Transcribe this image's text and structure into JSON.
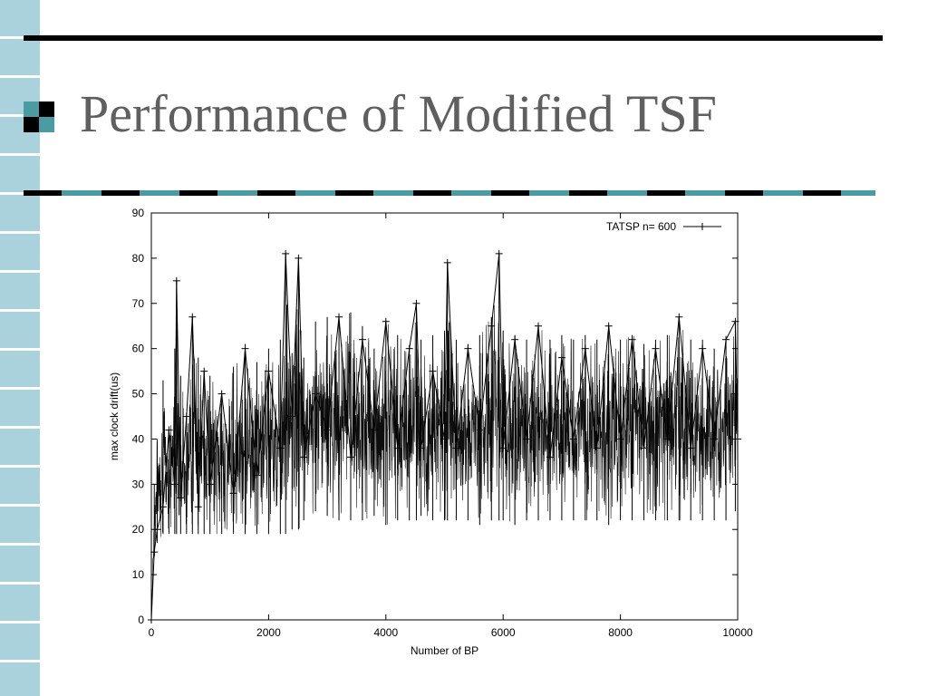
{
  "slide": {
    "title": "Performance of Modified TSF",
    "colors": {
      "accent": "#4b9ba3",
      "strip": "#a9d2dc",
      "title": "#5f5f5f"
    }
  },
  "chart_data": {
    "type": "line",
    "title": "",
    "xlabel": "Number of BP",
    "ylabel": "max clock drift(us)",
    "xlim": [
      0,
      10000
    ],
    "ylim": [
      0,
      90
    ],
    "xticks": [
      0,
      2000,
      4000,
      6000,
      8000,
      10000
    ],
    "yticks": [
      0,
      10,
      20,
      30,
      40,
      50,
      60,
      70,
      80,
      90
    ],
    "grid": false,
    "legend": {
      "position": "top-right"
    },
    "series": [
      {
        "name": "TATSP n= 600",
        "color": "#000000",
        "marker": "plus",
        "x": [
          0,
          50,
          100,
          200,
          300,
          400,
          430,
          500,
          600,
          700,
          800,
          900,
          1000,
          1200,
          1400,
          1600,
          1800,
          2000,
          2200,
          2290,
          2400,
          2510,
          2600,
          2800,
          3000,
          3200,
          3400,
          3600,
          3800,
          4000,
          4200,
          4400,
          4520,
          4600,
          4800,
          5000,
          5050,
          5200,
          5400,
          5600,
          5800,
          5930,
          6000,
          6200,
          6400,
          6600,
          6800,
          7000,
          7200,
          7400,
          7600,
          7800,
          8000,
          8200,
          8400,
          8600,
          8800,
          9000,
          9200,
          9400,
          9600,
          9800,
          9960,
          10000
        ],
        "y": [
          0,
          15,
          20,
          25,
          42,
          30,
          75,
          27,
          45,
          67,
          25,
          55,
          30,
          50,
          28,
          60,
          32,
          55,
          38,
          81,
          45,
          80,
          36,
          50,
          42,
          67,
          36,
          62,
          42,
          66,
          38,
          60,
          70,
          38,
          55,
          40,
          79,
          38,
          60,
          42,
          65,
          81,
          38,
          62,
          40,
          65,
          36,
          58,
          40,
          60,
          38,
          65,
          40,
          62,
          38,
          60,
          40,
          67,
          38,
          60,
          40,
          62,
          66,
          40
        ],
        "low": [
          0,
          14,
          17,
          19,
          19,
          19,
          19,
          19,
          19,
          19,
          19,
          19,
          19,
          19,
          19,
          19,
          19,
          19,
          19,
          19,
          20,
          20,
          22,
          24,
          23,
          22,
          22,
          22,
          23,
          21,
          22,
          22,
          22,
          23,
          22,
          22,
          22,
          22,
          22,
          21,
          22,
          22,
          22,
          21,
          22,
          22,
          22,
          22,
          22,
          22,
          22,
          21,
          22,
          22,
          22,
          22,
          22,
          22,
          22,
          22,
          22,
          22,
          24,
          30
        ],
        "high": [
          0,
          30,
          40,
          53,
          42,
          60,
          75,
          54,
          45,
          67,
          58,
          55,
          54,
          50,
          56,
          61,
          57,
          60,
          62,
          81,
          59,
          80,
          58,
          66,
          67,
          66,
          68,
          65,
          60,
          66,
          63,
          60,
          70,
          62,
          63,
          64,
          79,
          62,
          61,
          63,
          67,
          81,
          64,
          63,
          62,
          65,
          62,
          63,
          62,
          63,
          62,
          65,
          62,
          63,
          61,
          62,
          63,
          67,
          62,
          62,
          60,
          62,
          66,
          65
        ]
      }
    ]
  }
}
